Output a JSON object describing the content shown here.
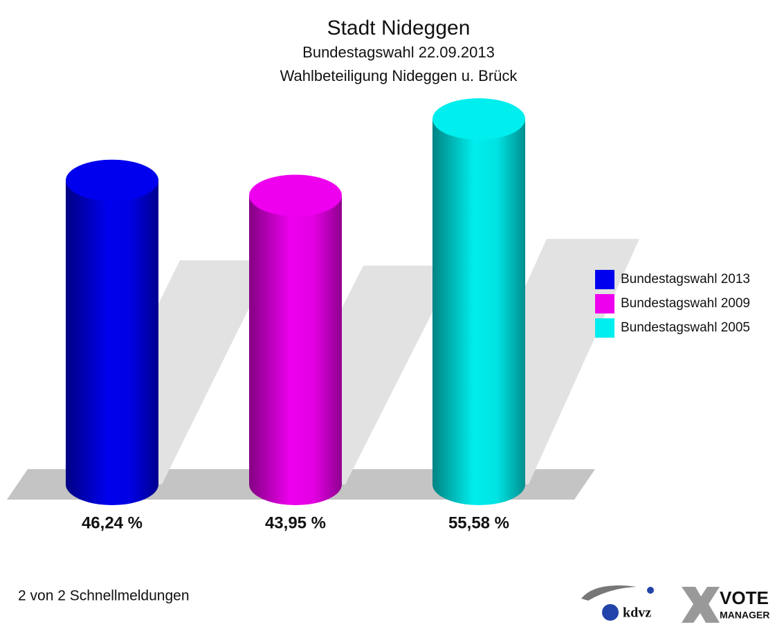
{
  "chart_data": {
    "type": "bar",
    "title": "Stadt Nideggen",
    "subtitle": [
      "Bundestagswahl 22.09.2013",
      "Wahlbeteiligung Nideggen u. Brück"
    ],
    "series": [
      {
        "name": "Bundestagswahl 2013",
        "color": "#0000ee",
        "values": [
          46.24
        ],
        "value_labels": [
          "46,24 %"
        ]
      },
      {
        "name": "Bundestagswahl 2009",
        "color": "#ee00ee",
        "values": [
          43.95
        ],
        "value_labels": [
          "43,95 %"
        ]
      },
      {
        "name": "Bundestagswahl 2005",
        "color": "#00eeee",
        "values": [
          55.58
        ],
        "value_labels": [
          "55,58 %"
        ]
      }
    ],
    "legend": "right",
    "footer": "2 von 2 Schnellmeldungen"
  },
  "logo": {
    "brand": "kdvz",
    "product": [
      "VOTE",
      "MANAGER"
    ]
  }
}
